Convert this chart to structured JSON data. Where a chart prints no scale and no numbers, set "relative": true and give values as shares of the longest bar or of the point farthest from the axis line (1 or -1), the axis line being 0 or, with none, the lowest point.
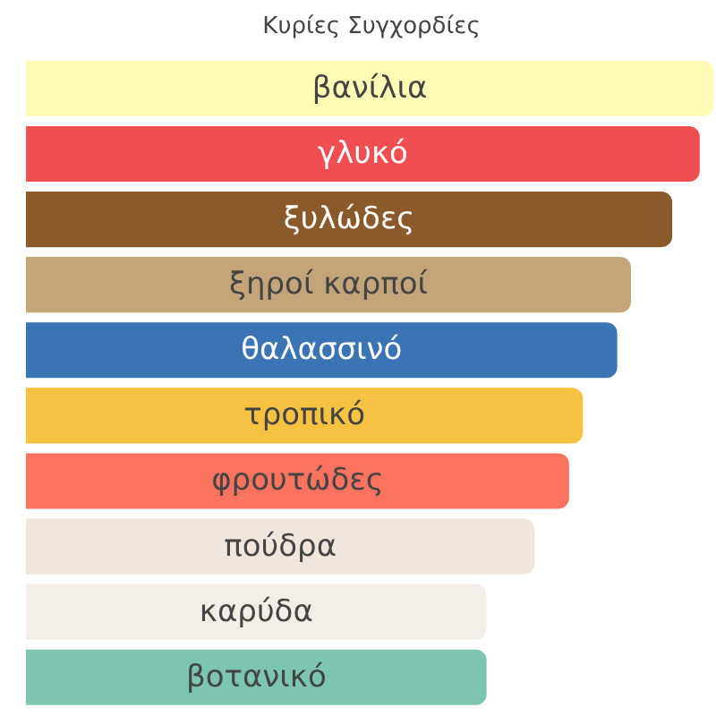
{
  "chart_data": {
    "type": "bar",
    "orientation": "horizontal",
    "relative": true,
    "title": "Κυρίες Συγχορδίες",
    "categories": [
      "βανίλια",
      "γλυκό",
      "ξυλώδες",
      "ξηροί καρποί",
      "θαλασσινό",
      "τροπικό",
      "φρουτώδες",
      "πούδρα",
      "καρύδα",
      "βοτανικό"
    ],
    "values": [
      1,
      0.98,
      0.94,
      0.88,
      0.86,
      0.81,
      0.79,
      0.74,
      0.67,
      0.67
    ],
    "colors": [
      "#fffbb4",
      "#f04e50",
      "#8b5a2b",
      "#c4a57a",
      "#3a74b5",
      "#f7c242",
      "#fb735f",
      "#f0e6dc",
      "#f3efe6",
      "#7cc5b0"
    ],
    "grid": false
  }
}
